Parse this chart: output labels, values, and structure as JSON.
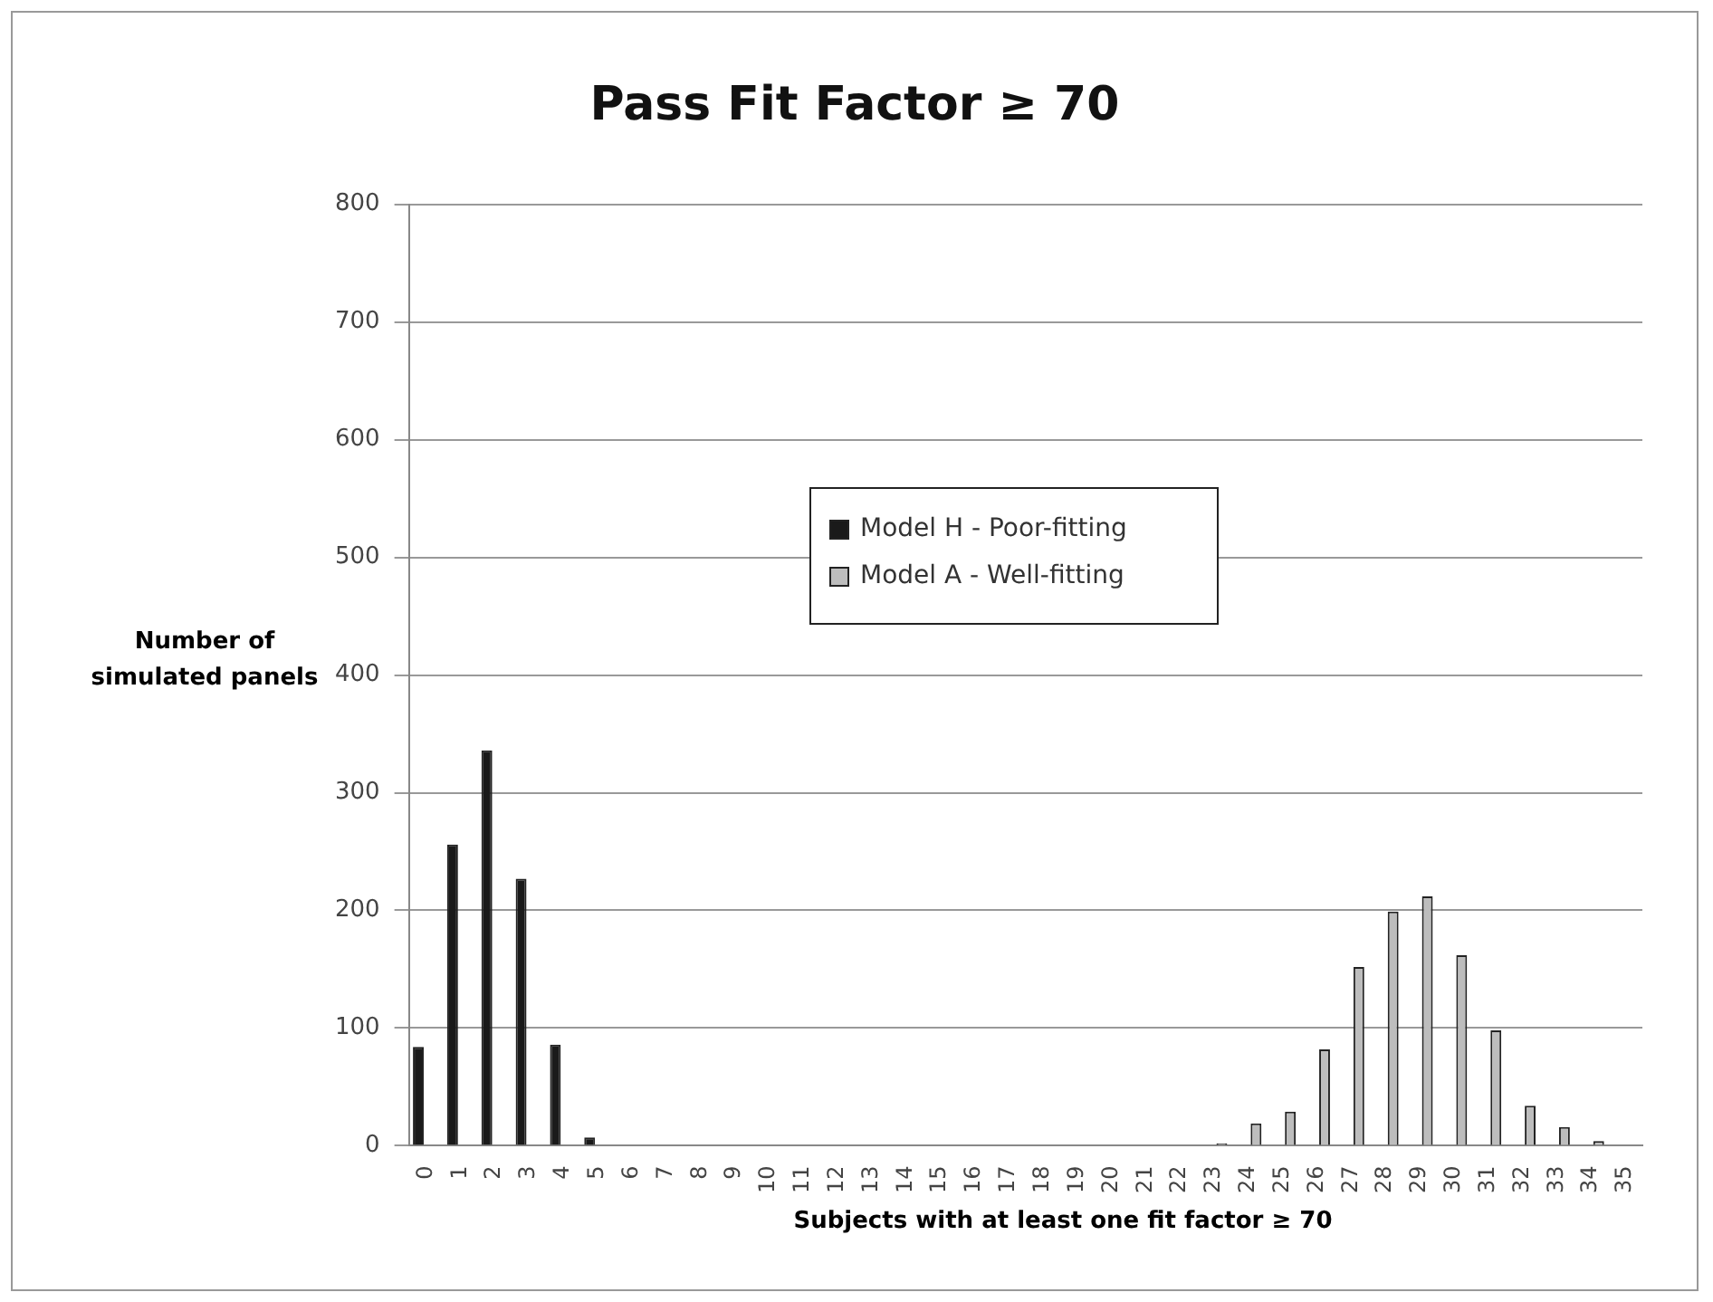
{
  "chart_data": {
    "type": "bar",
    "title": "Pass Fit Factor ≥ 70",
    "xlabel": "Subjects with at least one fit factor ≥ 70",
    "ylabel": "Number of simulated panels",
    "categories": [
      "0",
      "1",
      "2",
      "3",
      "4",
      "5",
      "6",
      "7",
      "8",
      "9",
      "10",
      "11",
      "12",
      "13",
      "14",
      "15",
      "16",
      "17",
      "18",
      "19",
      "20",
      "21",
      "22",
      "23",
      "24",
      "25",
      "26",
      "27",
      "28",
      "29",
      "30",
      "31",
      "32",
      "33",
      "34",
      "35"
    ],
    "series": [
      {
        "name": "Model H - Poor-fitting",
        "color": "#1a1a1a",
        "values": [
          84,
          256,
          336,
          227,
          86,
          7,
          null,
          null,
          null,
          null,
          null,
          null,
          null,
          null,
          null,
          null,
          null,
          null,
          null,
          null,
          null,
          null,
          null,
          null,
          null,
          null,
          null,
          null,
          null,
          null,
          null,
          null,
          null,
          null,
          null,
          null
        ]
      },
      {
        "name": "Model A - Well-fitting",
        "color": "#bdbdbd",
        "values": [
          null,
          null,
          null,
          null,
          null,
          null,
          null,
          null,
          null,
          null,
          null,
          null,
          null,
          null,
          null,
          null,
          null,
          null,
          null,
          null,
          null,
          null,
          null,
          2,
          19,
          29,
          82,
          152,
          199,
          212,
          162,
          98,
          34,
          16,
          4,
          0
        ]
      }
    ],
    "ylim": [
      0,
      800
    ],
    "yticks": [
      0,
      100,
      200,
      300,
      400,
      500,
      600,
      700,
      800
    ],
    "grid": "y",
    "legend": "top"
  }
}
